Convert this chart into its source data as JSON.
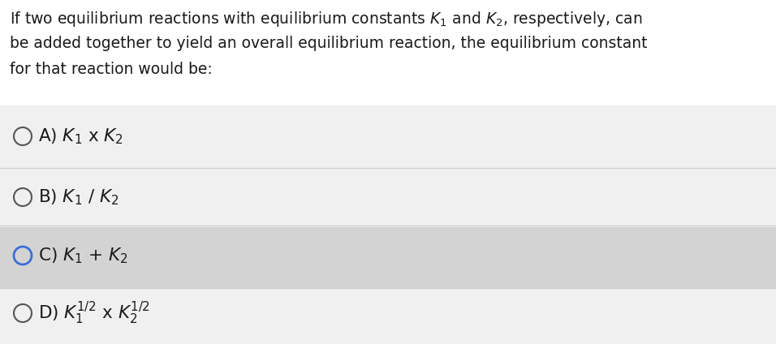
{
  "bg_top": "#f0f0f0",
  "bg_question": "#ffffff",
  "bg_options_normal": "#f5f5f5",
  "bg_option_c": "#d8d8d8",
  "bg_option_d": "#e8e8e8",
  "text_color": "#1a1a1a",
  "circle_color_normal": "#555555",
  "circle_color_c": "#3a6fd8",
  "separator_color": "#cccccc",
  "font_size_question": 13.5,
  "font_size_options": 15.5,
  "q_line1": "If two equilibrium reactions with equilibrium constants $K_1$ and $K_2$, respectively, can",
  "q_line2": "be added together to yield an overall equilibrium reaction, the equilibrium constant",
  "q_line3": "for that reaction would be:",
  "option_a": "A) $K_1$ x $K_2$",
  "option_b": "B) $K_1$ / $K_2$",
  "option_c": "C) $K_1$ + $K_2$",
  "option_d_pre": "D) $K_1^{1/2}$ x $K_2^{1/2}$"
}
